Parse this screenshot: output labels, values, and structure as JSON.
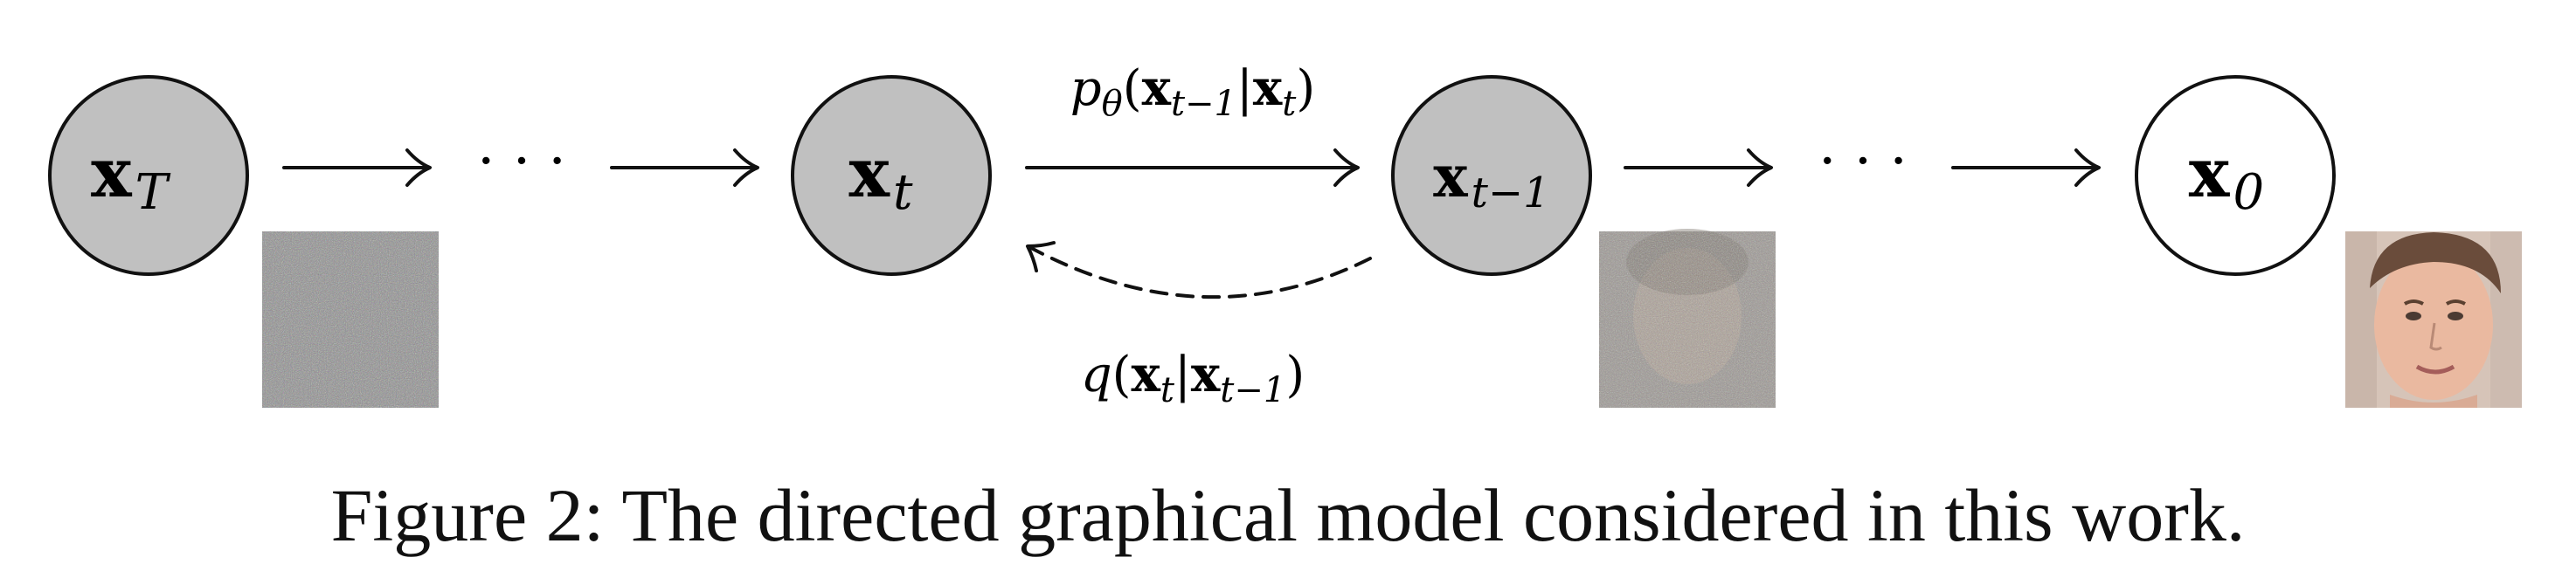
{
  "nodes": [
    {
      "id": "xT",
      "base": "x",
      "sub": "T",
      "fill": "#c0c0c0"
    },
    {
      "id": "xt",
      "base": "x",
      "sub": "t",
      "fill": "#c0c0c0"
    },
    {
      "id": "xt1",
      "base": "x",
      "sub": "t−1",
      "fill": "#c0c0c0"
    },
    {
      "id": "x0",
      "base": "x",
      "sub": "0",
      "fill": "#ffffff"
    }
  ],
  "ellipsis": "· · ·",
  "edge_labels": {
    "reverse": {
      "p": "p",
      "theta": "θ",
      "open": "(",
      "x1": "x",
      "s1": "t−1",
      "bar": "|",
      "x2": "x",
      "s2": "t",
      "close": ")"
    },
    "forward": {
      "q": "q",
      "open": "(",
      "x1": "x",
      "s1": "t",
      "bar": "|",
      "x2": "x",
      "s2": "t−1",
      "close": ")"
    }
  },
  "caption": "Figure 2: The directed graphical model considered in this work.",
  "colors": {
    "node_fill_shaded": "#c0c0c0",
    "node_fill_observed": "#ffffff",
    "stroke": "#111111"
  }
}
